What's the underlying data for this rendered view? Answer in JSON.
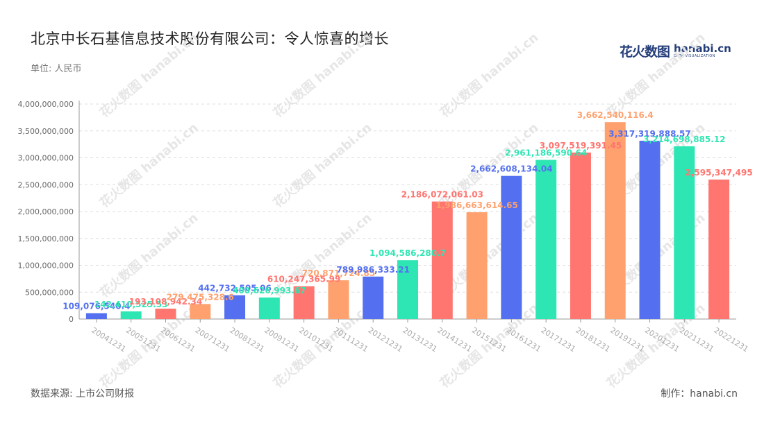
{
  "title": "北京中长石基信息技术股份有限公司：令人惊喜的增长",
  "unit_label": "单位: 人民币",
  "logo": {
    "cn": "花火数图",
    "en": "hanabi.cn",
    "tagline": "DATA VISUALIZATION"
  },
  "source_label": "数据来源: 上市公司财报",
  "credit_label": "制作：hanabi.cn",
  "colors": {
    "palette": [
      "#5470f0",
      "#2ee6b3",
      "#ff7570",
      "#ffa16e"
    ],
    "grid": "#dddddd",
    "axis_text": "#666666"
  },
  "chart_data": {
    "type": "bar",
    "title": "北京中长石基信息技术股份有限公司：令人惊喜的增长",
    "xlabel": "",
    "ylabel": "",
    "ylim": [
      0,
      4000000000
    ],
    "yticks": [
      0,
      500000000,
      1000000000,
      1500000000,
      2000000000,
      2500000000,
      3000000000,
      3500000000,
      4000000000
    ],
    "ytick_labels": [
      "0",
      "500,000,000",
      "1,000,000,000",
      "1,500,000,000",
      "2,000,000,000",
      "2,500,000,000",
      "3,000,000,000",
      "3,500,000,000",
      "4,000,000,000"
    ],
    "grid": true,
    "categories": [
      "20041231",
      "20051231",
      "20061231",
      "20071231",
      "20081231",
      "20091231",
      "20101231",
      "20111231",
      "20121231",
      "20131231",
      "20141231",
      "20151231",
      "20161231",
      "20171231",
      "20181231",
      "20191231",
      "20201231",
      "20211231",
      "20221231"
    ],
    "values": [
      109076540.4,
      142410525.53,
      193108942.34,
      279475328.6,
      442732505.06,
      400626993.67,
      610247365.99,
      720871724.85,
      789986333.21,
      1094586280.7,
      2186072061.03,
      1986663614.65,
      2662608134.04,
      2961186590.64,
      3097519391.45,
      3662540116.4,
      3317319888.57,
      3214698885.12,
      2595347495
    ],
    "value_labels": [
      "109,076,540.4",
      "142,410,525.53",
      "193,108,942.34",
      "279,475,328.6",
      "442,732,505.06",
      "400,626,993.67",
      "610,247,365.99",
      "720,871,724.85",
      "789,986,333.21",
      "1,094,586,280.7",
      "2,186,072,061.03",
      "1,986,663,614.65",
      "2,662,608,134.04",
      "2,961,186,590.64",
      "3,097,519,391.45",
      "3,662,540,116.4",
      "3,317,319,888.57",
      "3,214,698,885.12",
      "2,595,347,495"
    ]
  }
}
